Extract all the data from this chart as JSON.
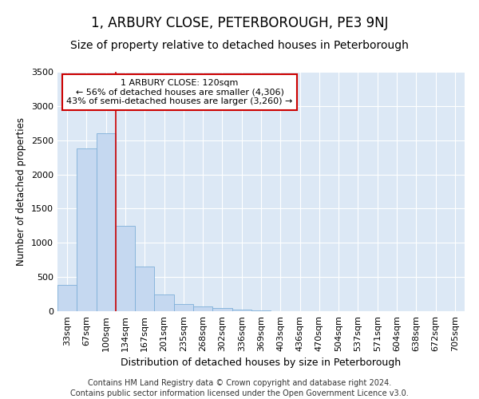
{
  "title": "1, ARBURY CLOSE, PETERBOROUGH, PE3 9NJ",
  "subtitle": "Size of property relative to detached houses in Peterborough",
  "xlabel": "Distribution of detached houses by size in Peterborough",
  "ylabel": "Number of detached properties",
  "footer_line1": "Contains HM Land Registry data © Crown copyright and database right 2024.",
  "footer_line2": "Contains public sector information licensed under the Open Government Licence v3.0.",
  "bar_labels": [
    "33sqm",
    "67sqm",
    "100sqm",
    "134sqm",
    "167sqm",
    "201sqm",
    "235sqm",
    "268sqm",
    "302sqm",
    "336sqm",
    "369sqm",
    "403sqm",
    "436sqm",
    "470sqm",
    "504sqm",
    "537sqm",
    "571sqm",
    "604sqm",
    "638sqm",
    "672sqm",
    "705sqm"
  ],
  "bar_values": [
    380,
    2380,
    2600,
    1250,
    650,
    250,
    100,
    65,
    50,
    20,
    10,
    0,
    0,
    0,
    0,
    0,
    0,
    0,
    0,
    0,
    0
  ],
  "bar_color": "#c5d8f0",
  "bar_edgecolor": "#7fb0d8",
  "fig_background_color": "#ffffff",
  "plot_background_color": "#dce8f5",
  "grid_color": "#ffffff",
  "vline_x": 2.5,
  "vline_color": "#cc0000",
  "annotation_text": "1 ARBURY CLOSE: 120sqm\n← 56% of detached houses are smaller (4,306)\n43% of semi-detached houses are larger (3,260) →",
  "annotation_box_color": "#ffffff",
  "annotation_box_edgecolor": "#cc0000",
  "ylim": [
    0,
    3500
  ],
  "yticks": [
    0,
    500,
    1000,
    1500,
    2000,
    2500,
    3000,
    3500
  ],
  "title_fontsize": 12,
  "subtitle_fontsize": 10,
  "xlabel_fontsize": 9,
  "ylabel_fontsize": 8.5,
  "tick_fontsize": 8,
  "annotation_fontsize": 8,
  "footer_fontsize": 7
}
